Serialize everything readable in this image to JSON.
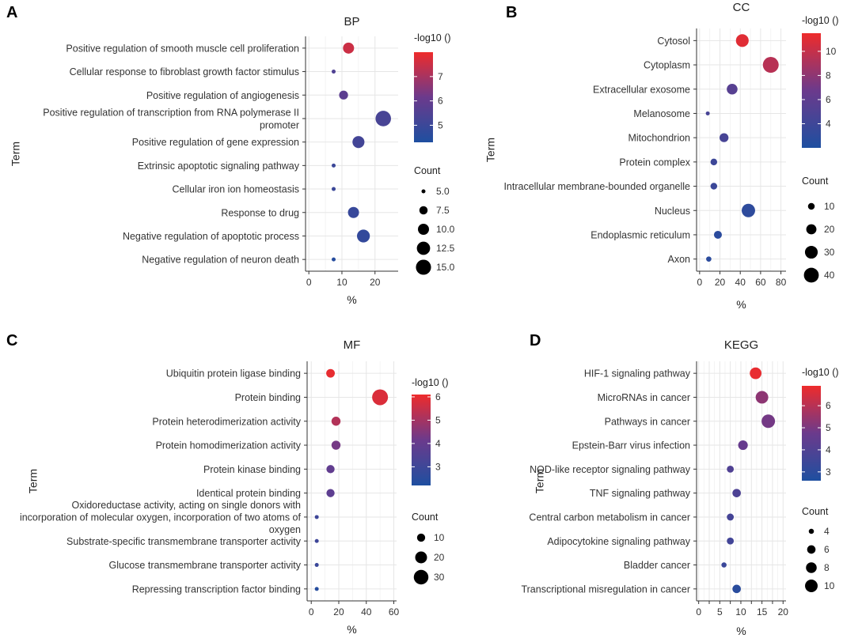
{
  "panels": [
    {
      "id": "A",
      "chart_data": {
        "type": "scatter",
        "title": "BP",
        "xlabel": "%",
        "ylabel": "Term",
        "xlim": [
          -1,
          27
        ],
        "xticks": [
          0,
          10,
          20
        ],
        "terms": [
          {
            "label": [
              "Positive regulation of smooth muscle cell proliferation"
            ],
            "pct": 12,
            "neglog10": 7.5,
            "count": 10
          },
          {
            "label": [
              "Cellular response to fibroblast growth factor stimulus"
            ],
            "pct": 7.5,
            "neglog10": 5.5,
            "count": 5
          },
          {
            "label": [
              "Positive regulation of angiogenesis"
            ],
            "pct": 10.5,
            "neglog10": 5.8,
            "count": 8
          },
          {
            "label": [
              "Positive regulation of transcription from RNA polymerase II",
              "promoter"
            ],
            "pct": 22.5,
            "neglog10": 5.3,
            "count": 15.5
          },
          {
            "label": [
              "Positive regulation of gene expression"
            ],
            "pct": 15,
            "neglog10": 5.2,
            "count": 11
          },
          {
            "label": [
              "Extrinsic apoptotic signaling pathway"
            ],
            "pct": 7.5,
            "neglog10": 5.0,
            "count": 5
          },
          {
            "label": [
              "Cellular iron ion homeostasis"
            ],
            "pct": 7.5,
            "neglog10": 5.0,
            "count": 5
          },
          {
            "label": [
              "Response to drug"
            ],
            "pct": 13.5,
            "neglog10": 4.9,
            "count": 10
          },
          {
            "label": [
              "Negative regulation of apoptotic process"
            ],
            "pct": 16.5,
            "neglog10": 4.8,
            "count": 12
          },
          {
            "label": [
              "Negative regulation of neuron death"
            ],
            "pct": 7.5,
            "neglog10": 4.5,
            "count": 5
          }
        ],
        "color": {
          "title": "-log10 ()",
          "min": 4.3,
          "max": 8.0,
          "ticks": [
            5,
            6,
            7
          ]
        },
        "size": {
          "title": "Count",
          "ticks": [
            5.0,
            7.5,
            10.0,
            12.5,
            15.0
          ],
          "tick_labels": [
            "5.0",
            "7.5",
            "10.0",
            "12.5",
            "15.0"
          ],
          "min": 5,
          "max": 16
        }
      }
    },
    {
      "id": "B",
      "chart_data": {
        "type": "scatter",
        "title": "CC",
        "xlabel": "%",
        "ylabel": "Term",
        "xlim": [
          -3,
          85
        ],
        "xticks": [
          0,
          20,
          40,
          60,
          80
        ],
        "xtick_labels": [
          "0",
          "20",
          "40",
          "60",
          "80"
        ],
        "terms": [
          {
            "label": [
              "Cytosol"
            ],
            "pct": 42,
            "neglog10": 11,
            "count": 30
          },
          {
            "label": [
              "Cytoplasm"
            ],
            "pct": 70,
            "neglog10": 9.5,
            "count": 45
          },
          {
            "label": [
              "Extracellular exosome"
            ],
            "pct": 32,
            "neglog10": 5.5,
            "count": 22
          },
          {
            "label": [
              "Melanosome"
            ],
            "pct": 8,
            "neglog10": 4.5,
            "count": 5
          },
          {
            "label": [
              "Mitochondrion"
            ],
            "pct": 24,
            "neglog10": 4.5,
            "count": 16
          },
          {
            "label": [
              "Protein complex"
            ],
            "pct": 14,
            "neglog10": 3.9,
            "count": 10
          },
          {
            "label": [
              "Intracellular membrane-bounded organelle"
            ],
            "pct": 14,
            "neglog10": 3.8,
            "count": 10
          },
          {
            "label": [
              "Nucleus"
            ],
            "pct": 48,
            "neglog10": 3.0,
            "count": 33
          },
          {
            "label": [
              "Endoplasmic reticulum"
            ],
            "pct": 18,
            "neglog10": 2.8,
            "count": 13
          },
          {
            "label": [
              "Axon"
            ],
            "pct": 9,
            "neglog10": 2.8,
            "count": 7
          }
        ],
        "color": {
          "title": "-log10 ()",
          "min": 2.0,
          "max": 11.5,
          "ticks": [
            4,
            6,
            8,
            10
          ]
        },
        "size": {
          "title": "Count",
          "ticks": [
            10,
            20,
            30,
            40
          ],
          "tick_labels": [
            "10",
            "20",
            "30",
            "40"
          ],
          "min": 5,
          "max": 45
        }
      }
    },
    {
      "id": "C",
      "chart_data": {
        "type": "scatter",
        "title": "MF",
        "xlabel": "%",
        "ylabel": "Term",
        "xlim": [
          -3,
          62
        ],
        "xticks": [
          0,
          20,
          40,
          60
        ],
        "terms": [
          {
            "label": [
              "Ubiquitin protein ligase binding"
            ],
            "pct": 14,
            "neglog10": 6,
            "count": 11
          },
          {
            "label": [
              "Protein binding"
            ],
            "pct": 50,
            "neglog10": 5.8,
            "count": 35
          },
          {
            "label": [
              "Protein heterodimerization activity"
            ],
            "pct": 18,
            "neglog10": 5.2,
            "count": 12
          },
          {
            "label": [
              "Protein homodimerization activity"
            ],
            "pct": 18,
            "neglog10": 4.3,
            "count": 12
          },
          {
            "label": [
              "Protein kinase binding"
            ],
            "pct": 14,
            "neglog10": 3.9,
            "count": 10
          },
          {
            "label": [
              "Identical protein binding"
            ],
            "pct": 14,
            "neglog10": 3.8,
            "count": 10
          },
          {
            "label": [
              "Oxidoreductase activity, acting on single donors with",
              "incorporation of molecular oxygen, incorporation of two atoms of",
              "oxygen"
            ],
            "pct": 4,
            "neglog10": 3.0,
            "count": 3
          },
          {
            "label": [
              "Substrate-specific transmembrane transporter activity"
            ],
            "pct": 4,
            "neglog10": 3.0,
            "count": 3
          },
          {
            "label": [
              "Glucose transmembrane transporter activity"
            ],
            "pct": 4,
            "neglog10": 2.9,
            "count": 3
          },
          {
            "label": [
              "Repressing transcription factor binding"
            ],
            "pct": 4,
            "neglog10": 2.4,
            "count": 3
          }
        ],
        "color": {
          "title": "-log10 ()",
          "min": 2.2,
          "max": 6.1,
          "ticks": [
            3,
            4,
            5,
            6
          ]
        },
        "size": {
          "title": "Count",
          "ticks": [
            10,
            20,
            30
          ],
          "tick_labels": [
            "10",
            "20",
            "30"
          ],
          "min": 3,
          "max": 35
        }
      }
    },
    {
      "id": "D",
      "chart_data": {
        "type": "scatter",
        "title": "KEGG",
        "xlabel": "%",
        "ylabel": "Term",
        "xlim": [
          -0.5,
          20.7
        ],
        "xticks": [
          0,
          2.5,
          5,
          7.5,
          10,
          12.5,
          15,
          17.5,
          20
        ],
        "xtick_labels": [
          "0",
          "",
          "5",
          "",
          "10",
          "",
          "15",
          "",
          "20"
        ],
        "terms": [
          {
            "label": [
              "HIF-1 signaling pathway"
            ],
            "pct": 13.5,
            "neglog10": 6.8,
            "count": 9
          },
          {
            "label": [
              "MicroRNAs in cancer"
            ],
            "pct": 15,
            "neglog10": 5.3,
            "count": 10
          },
          {
            "label": [
              "Pathways in cancer"
            ],
            "pct": 16.5,
            "neglog10": 4.9,
            "count": 11
          },
          {
            "label": [
              "Epstein-Barr virus infection"
            ],
            "pct": 10.5,
            "neglog10": 4.6,
            "count": 7
          },
          {
            "label": [
              "NOD-like receptor signaling pathway"
            ],
            "pct": 7.5,
            "neglog10": 4.0,
            "count": 5
          },
          {
            "label": [
              "TNF signaling pathway"
            ],
            "pct": 9,
            "neglog10": 3.9,
            "count": 6
          },
          {
            "label": [
              "Central carbon metabolism in cancer"
            ],
            "pct": 7.5,
            "neglog10": 3.7,
            "count": 5
          },
          {
            "label": [
              "Adipocytokine signaling pathway"
            ],
            "pct": 7.5,
            "neglog10": 3.6,
            "count": 5
          },
          {
            "label": [
              "Bladder cancer"
            ],
            "pct": 6,
            "neglog10": 3.4,
            "count": 4
          },
          {
            "label": [
              "Transcriptional misregulation in cancer"
            ],
            "pct": 9,
            "neglog10": 2.9,
            "count": 6
          }
        ],
        "color": {
          "title": "-log10 ()",
          "min": 2.6,
          "max": 6.9,
          "ticks": [
            3,
            4,
            5,
            6
          ]
        },
        "size": {
          "title": "Count",
          "ticks": [
            4,
            6,
            8,
            10
          ],
          "tick_labels": [
            "4",
            "6",
            "8",
            "10"
          ],
          "min": 3.5,
          "max": 11
        }
      }
    }
  ],
  "colors": {
    "low": "#1e4fa0",
    "mid": "#6b3a8c",
    "high": "#ee2b2b",
    "grid": "#e6e6e6",
    "axis": "#333333"
  }
}
